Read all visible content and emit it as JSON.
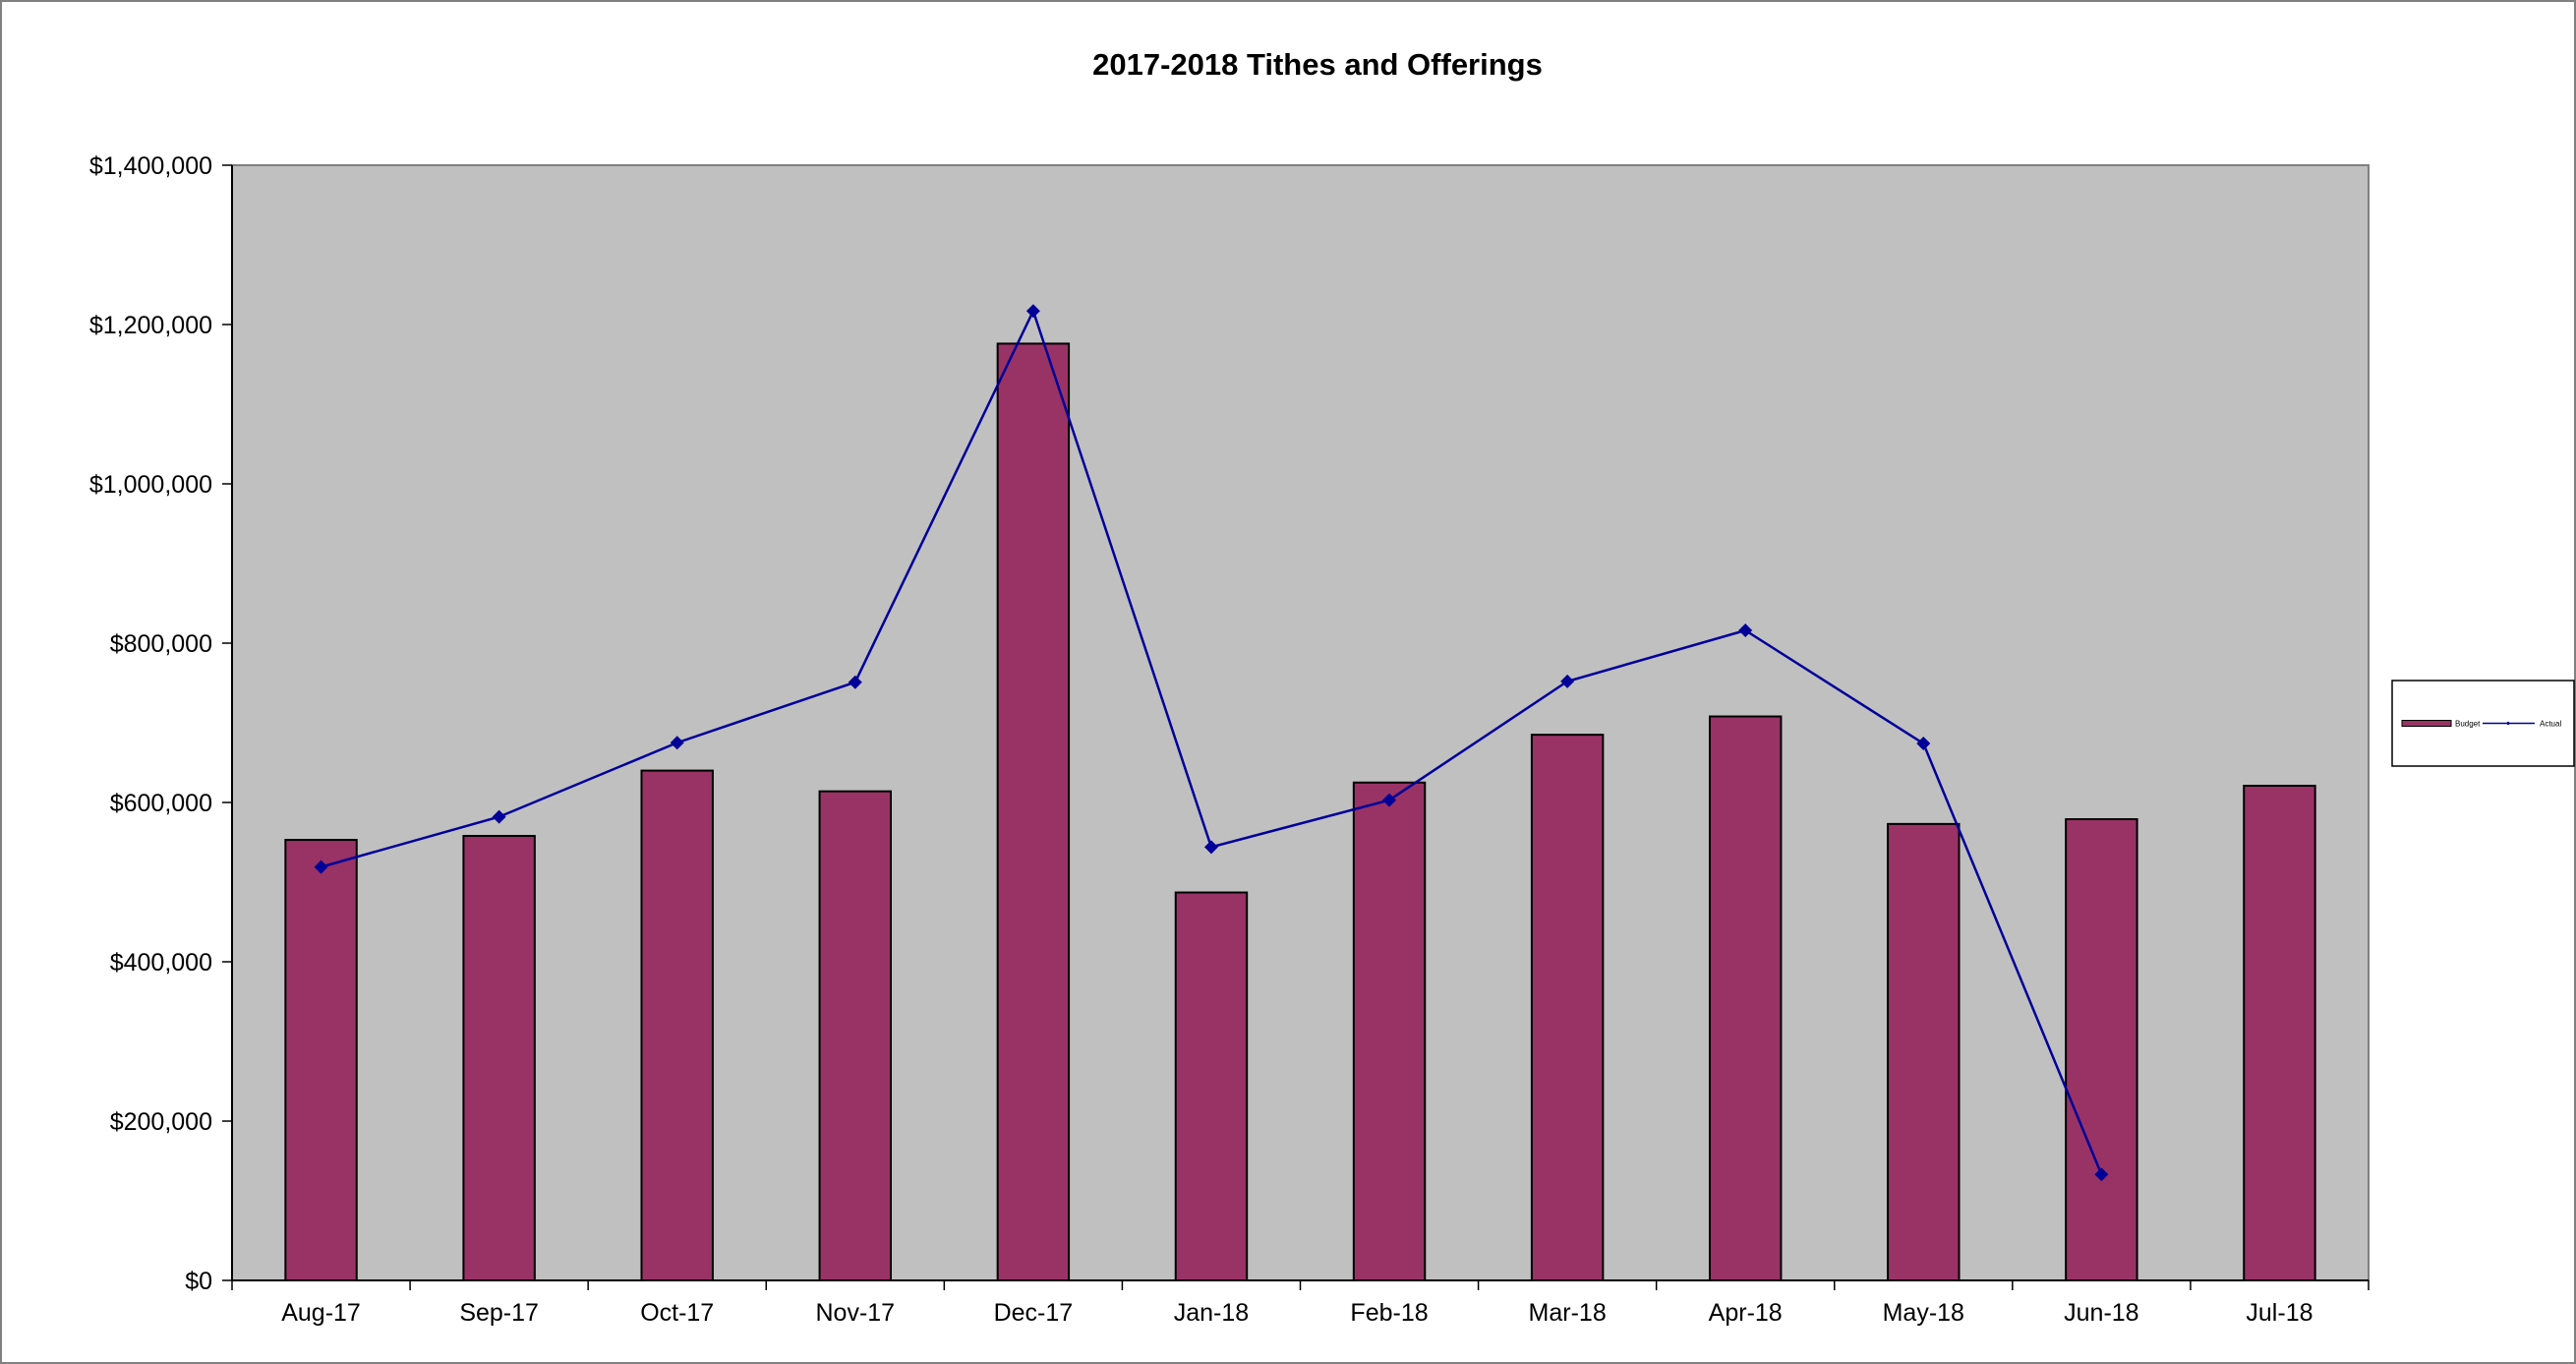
{
  "chart_data": {
    "type": "bar",
    "title": "2017-2018 Tithes and Offerings",
    "xlabel": "",
    "ylabel": "",
    "categories": [
      "Aug-17",
      "Sep-17",
      "Oct-17",
      "Nov-17",
      "Dec-17",
      "Jan-18",
      "Feb-18",
      "Mar-18",
      "Apr-18",
      "May-18",
      "Jun-18",
      "Jul-18"
    ],
    "series": [
      {
        "name": "Budget",
        "type": "bar",
        "color": "#993366",
        "values": [
          553000,
          558000,
          640000,
          614000,
          1176000,
          487000,
          625000,
          685000,
          708000,
          573000,
          579000,
          621000
        ]
      },
      {
        "name": "Actual",
        "type": "line",
        "color": "#000099",
        "marker": "diamond",
        "values": [
          519000,
          582000,
          675000,
          751000,
          1217000,
          544000,
          603000,
          752000,
          816000,
          674000,
          133000,
          null
        ]
      }
    ],
    "ylim": [
      0,
      1400000
    ],
    "y_ticks": [
      0,
      200000,
      400000,
      600000,
      800000,
      1000000,
      1200000,
      1400000
    ],
    "y_tick_labels": [
      "$0",
      "$200,000",
      "$400,000",
      "$600,000",
      "$800,000",
      "$1,000,000",
      "$1,200,000",
      "$1,400,000"
    ],
    "grid": false,
    "plot_background": "#c0c0c0",
    "legend_position": "right"
  }
}
